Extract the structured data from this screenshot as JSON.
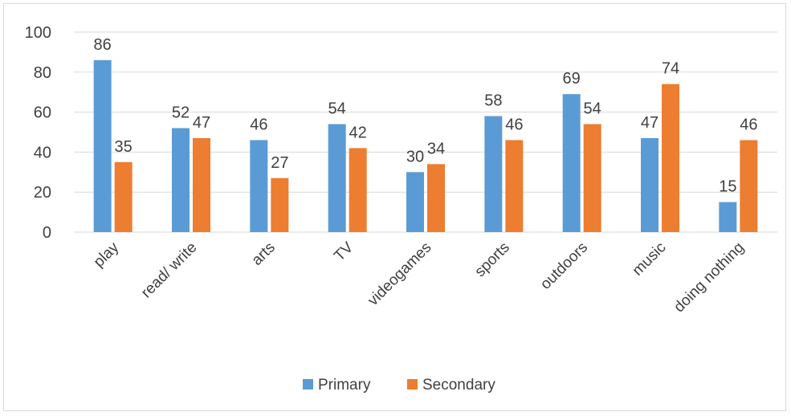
{
  "chart_data": {
    "type": "bar",
    "categories": [
      "play",
      "read/ write",
      "arts",
      "TV",
      "videogames",
      "sports",
      "outdoors",
      "music",
      "doing nothing"
    ],
    "series": [
      {
        "name": "Primary",
        "values": [
          86,
          52,
          46,
          54,
          30,
          58,
          69,
          47,
          15
        ],
        "color": "#5b9bd5"
      },
      {
        "name": "Secondary",
        "values": [
          35,
          47,
          27,
          42,
          34,
          46,
          54,
          74,
          46
        ],
        "color": "#ed7d31"
      }
    ],
    "ylim": [
      0,
      100
    ],
    "yticks": [
      0,
      20,
      40,
      60,
      80,
      100
    ],
    "grid": true,
    "legend_position": "bottom",
    "data_labels": true
  }
}
